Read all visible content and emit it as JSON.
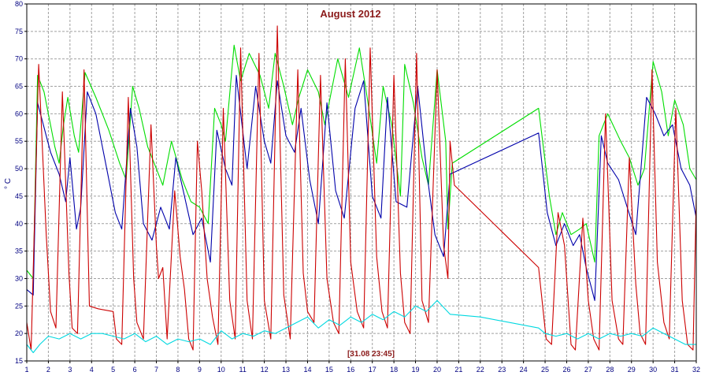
{
  "chart_data": {
    "type": "line",
    "title": "August 2012",
    "ylabel": "° C",
    "xlabel": "",
    "footer_label": "[31.08 23:45]",
    "xlim": [
      1,
      32
    ],
    "ylim": [
      15,
      80
    ],
    "x_ticks": [
      1,
      2,
      3,
      4,
      5,
      6,
      7,
      8,
      9,
      10,
      11,
      12,
      13,
      14,
      15,
      16,
      17,
      18,
      19,
      20,
      21,
      22,
      23,
      24,
      25,
      26,
      27,
      28,
      29,
      30,
      31,
      32
    ],
    "y_ticks": [
      15,
      20,
      25,
      30,
      35,
      40,
      45,
      50,
      55,
      60,
      65,
      70,
      75,
      80
    ],
    "grid": true,
    "legend": "none",
    "colors": {
      "title": "#8b1a1a",
      "axis_text": "#000080",
      "grid": "#a0a0a0",
      "frame": "#000000"
    },
    "series": [
      {
        "color": "#00dd00",
        "points": [
          [
            1.0,
            31.5
          ],
          [
            1.3,
            30
          ],
          [
            1.5,
            67
          ],
          [
            1.8,
            64
          ],
          [
            2.3,
            54
          ],
          [
            2.5,
            51
          ],
          [
            2.7,
            58
          ],
          [
            2.9,
            63
          ],
          [
            3.2,
            56
          ],
          [
            3.4,
            53
          ],
          [
            3.7,
            67.5
          ],
          [
            4.2,
            63
          ],
          [
            4.8,
            57
          ],
          [
            5.3,
            51
          ],
          [
            5.6,
            48
          ],
          [
            5.9,
            65
          ],
          [
            6.2,
            61
          ],
          [
            6.6,
            54
          ],
          [
            7.0,
            50
          ],
          [
            7.3,
            47
          ],
          [
            7.7,
            55
          ],
          [
            8.2,
            48
          ],
          [
            8.6,
            44
          ],
          [
            9.0,
            43
          ],
          [
            9.4,
            40
          ],
          [
            9.7,
            61
          ],
          [
            10.0,
            58
          ],
          [
            10.2,
            55
          ],
          [
            10.6,
            72.5
          ],
          [
            10.9,
            66
          ],
          [
            11.3,
            71
          ],
          [
            11.8,
            67
          ],
          [
            12.2,
            61
          ],
          [
            12.5,
            71
          ],
          [
            12.9,
            65
          ],
          [
            13.3,
            58
          ],
          [
            13.6,
            63
          ],
          [
            14.0,
            68
          ],
          [
            14.5,
            64
          ],
          [
            14.8,
            58
          ],
          [
            15.4,
            70
          ],
          [
            15.9,
            63
          ],
          [
            16.4,
            72
          ],
          [
            16.8,
            62
          ],
          [
            17.2,
            51
          ],
          [
            17.5,
            65
          ],
          [
            17.9,
            58
          ],
          [
            18.3,
            45
          ],
          [
            18.5,
            69
          ],
          [
            18.9,
            62
          ],
          [
            19.3,
            52
          ],
          [
            19.6,
            47
          ],
          [
            20.0,
            68
          ],
          [
            20.4,
            55
          ],
          [
            20.5,
            39
          ],
          [
            20.7,
            51
          ],
          [
            24.7,
            61
          ],
          [
            25.2,
            45
          ],
          [
            25.5,
            38
          ],
          [
            25.8,
            42
          ],
          [
            26.2,
            38
          ],
          [
            26.6,
            39
          ],
          [
            26.9,
            40
          ],
          [
            27.3,
            33
          ],
          [
            27.5,
            56
          ],
          [
            27.9,
            60
          ],
          [
            28.5,
            55
          ],
          [
            28.9,
            52
          ],
          [
            29.3,
            47
          ],
          [
            29.6,
            50
          ],
          [
            30.0,
            69.5
          ],
          [
            30.4,
            64
          ],
          [
            30.7,
            56
          ],
          [
            31.0,
            62.5
          ],
          [
            31.4,
            58
          ],
          [
            31.7,
            50
          ],
          [
            32.0,
            48
          ]
        ]
      },
      {
        "color": "#0000aa",
        "points": [
          [
            1.0,
            28
          ],
          [
            1.3,
            27
          ],
          [
            1.5,
            62
          ],
          [
            1.9,
            56
          ],
          [
            2.1,
            53
          ],
          [
            2.5,
            49
          ],
          [
            2.8,
            44
          ],
          [
            3.0,
            52
          ],
          [
            3.3,
            39
          ],
          [
            3.5,
            43
          ],
          [
            3.8,
            64
          ],
          [
            4.2,
            60
          ],
          [
            4.7,
            50
          ],
          [
            5.1,
            42
          ],
          [
            5.4,
            39
          ],
          [
            5.8,
            61
          ],
          [
            6.1,
            54
          ],
          [
            6.4,
            40
          ],
          [
            6.8,
            37
          ],
          [
            7.2,
            43
          ],
          [
            7.6,
            39
          ],
          [
            7.9,
            52
          ],
          [
            8.3,
            45
          ],
          [
            8.7,
            38
          ],
          [
            9.1,
            41
          ],
          [
            9.5,
            33
          ],
          [
            9.8,
            57
          ],
          [
            10.2,
            50
          ],
          [
            10.5,
            47
          ],
          [
            10.7,
            67
          ],
          [
            11.2,
            50
          ],
          [
            11.6,
            65
          ],
          [
            12.0,
            55
          ],
          [
            12.3,
            51
          ],
          [
            12.6,
            66
          ],
          [
            13.0,
            56
          ],
          [
            13.4,
            53
          ],
          [
            13.7,
            61
          ],
          [
            14.1,
            48
          ],
          [
            14.5,
            40
          ],
          [
            14.9,
            62
          ],
          [
            15.3,
            46
          ],
          [
            15.7,
            41
          ],
          [
            16.2,
            61
          ],
          [
            16.6,
            66
          ],
          [
            17.0,
            45
          ],
          [
            17.4,
            41
          ],
          [
            17.7,
            63
          ],
          [
            18.1,
            44
          ],
          [
            18.6,
            43
          ],
          [
            19.1,
            65
          ],
          [
            19.5,
            50
          ],
          [
            19.9,
            38
          ],
          [
            20.3,
            34
          ],
          [
            20.6,
            49
          ],
          [
            24.7,
            56.5
          ],
          [
            25.1,
            42
          ],
          [
            25.5,
            36
          ],
          [
            25.9,
            40
          ],
          [
            26.3,
            36
          ],
          [
            26.6,
            38
          ],
          [
            26.9,
            32
          ],
          [
            27.3,
            26
          ],
          [
            27.6,
            56
          ],
          [
            27.9,
            51
          ],
          [
            28.4,
            48
          ],
          [
            28.8,
            43
          ],
          [
            29.2,
            38
          ],
          [
            29.7,
            63
          ],
          [
            30.1,
            60
          ],
          [
            30.5,
            56
          ],
          [
            30.9,
            58
          ],
          [
            31.3,
            50
          ],
          [
            31.7,
            47
          ],
          [
            32.0,
            41
          ]
        ]
      },
      {
        "color": "#cc0000",
        "points": [
          [
            1.0,
            22
          ],
          [
            1.2,
            17
          ],
          [
            1.55,
            69
          ],
          [
            1.9,
            38
          ],
          [
            2.1,
            24
          ],
          [
            2.35,
            21
          ],
          [
            2.65,
            64
          ],
          [
            2.95,
            31
          ],
          [
            3.1,
            21
          ],
          [
            3.35,
            20
          ],
          [
            3.65,
            68
          ],
          [
            3.9,
            25
          ],
          [
            4.3,
            24.5
          ],
          [
            5.0,
            24
          ],
          [
            5.15,
            19
          ],
          [
            5.4,
            18
          ],
          [
            5.7,
            63
          ],
          [
            5.95,
            30
          ],
          [
            6.1,
            22
          ],
          [
            6.4,
            19
          ],
          [
            6.75,
            58
          ],
          [
            7.0,
            36
          ],
          [
            7.1,
            30
          ],
          [
            7.3,
            32
          ],
          [
            7.5,
            19
          ],
          [
            7.85,
            46
          ],
          [
            8.1,
            34
          ],
          [
            8.3,
            28
          ],
          [
            8.5,
            19
          ],
          [
            8.7,
            17
          ],
          [
            8.9,
            55
          ],
          [
            9.1,
            46
          ],
          [
            9.35,
            30
          ],
          [
            9.6,
            23
          ],
          [
            9.85,
            18
          ],
          [
            10.1,
            61
          ],
          [
            10.4,
            26
          ],
          [
            10.65,
            19
          ],
          [
            10.9,
            72
          ],
          [
            11.2,
            26
          ],
          [
            11.45,
            19
          ],
          [
            11.75,
            71
          ],
          [
            12.0,
            26
          ],
          [
            12.3,
            19
          ],
          [
            12.6,
            76
          ],
          [
            12.9,
            27
          ],
          [
            13.2,
            19
          ],
          [
            13.55,
            68
          ],
          [
            13.8,
            31
          ],
          [
            14.0,
            24
          ],
          [
            14.3,
            22
          ],
          [
            14.6,
            67
          ],
          [
            14.9,
            30
          ],
          [
            15.2,
            22
          ],
          [
            15.45,
            20
          ],
          [
            15.75,
            70
          ],
          [
            16.0,
            33
          ],
          [
            16.3,
            24
          ],
          [
            16.6,
            21
          ],
          [
            16.9,
            72
          ],
          [
            17.2,
            34
          ],
          [
            17.45,
            24
          ],
          [
            17.7,
            21
          ],
          [
            18.0,
            67
          ],
          [
            18.3,
            31
          ],
          [
            18.5,
            22
          ],
          [
            18.75,
            20
          ],
          [
            19.05,
            71
          ],
          [
            19.3,
            26
          ],
          [
            19.6,
            22
          ],
          [
            20.0,
            68
          ],
          [
            20.3,
            36
          ],
          [
            20.5,
            30
          ],
          [
            20.6,
            55
          ],
          [
            20.8,
            47
          ],
          [
            24.7,
            32
          ],
          [
            25.05,
            19
          ],
          [
            25.3,
            18
          ],
          [
            25.6,
            42
          ],
          [
            25.9,
            36
          ],
          [
            26.2,
            18
          ],
          [
            26.4,
            17
          ],
          [
            26.75,
            41
          ],
          [
            27.0,
            26
          ],
          [
            27.25,
            19
          ],
          [
            27.5,
            17
          ],
          [
            27.8,
            60
          ],
          [
            28.1,
            26
          ],
          [
            28.4,
            19
          ],
          [
            28.6,
            18
          ],
          [
            28.9,
            52
          ],
          [
            29.2,
            29
          ],
          [
            29.4,
            20
          ],
          [
            29.65,
            18
          ],
          [
            29.95,
            68
          ],
          [
            30.2,
            33
          ],
          [
            30.5,
            22
          ],
          [
            30.75,
            19
          ],
          [
            31.05,
            61
          ],
          [
            31.35,
            26
          ],
          [
            31.6,
            18
          ],
          [
            31.85,
            17
          ],
          [
            32.0,
            45
          ]
        ]
      },
      {
        "color": "#00d8e0",
        "points": [
          [
            1.0,
            18
          ],
          [
            1.3,
            16.5
          ],
          [
            1.6,
            18
          ],
          [
            2.0,
            19.5
          ],
          [
            2.5,
            19
          ],
          [
            3.0,
            20
          ],
          [
            3.5,
            19
          ],
          [
            4.0,
            20
          ],
          [
            4.5,
            20
          ],
          [
            5.0,
            19.5
          ],
          [
            5.5,
            19
          ],
          [
            6.0,
            20
          ],
          [
            6.5,
            18.5
          ],
          [
            7.0,
            19.5
          ],
          [
            7.5,
            18
          ],
          [
            8.0,
            19
          ],
          [
            8.5,
            18.5
          ],
          [
            9.0,
            19
          ],
          [
            9.5,
            18
          ],
          [
            10.0,
            20.5
          ],
          [
            10.5,
            19
          ],
          [
            11.0,
            20
          ],
          [
            11.5,
            19.5
          ],
          [
            12.0,
            20.5
          ],
          [
            12.5,
            20
          ],
          [
            13.0,
            21
          ],
          [
            13.5,
            22
          ],
          [
            14.0,
            23
          ],
          [
            14.5,
            21
          ],
          [
            15.0,
            22.5
          ],
          [
            15.5,
            21.5
          ],
          [
            16.0,
            23
          ],
          [
            16.5,
            22
          ],
          [
            17.0,
            23.5
          ],
          [
            17.5,
            22.5
          ],
          [
            18.0,
            24
          ],
          [
            18.5,
            23
          ],
          [
            19.0,
            25
          ],
          [
            19.5,
            24
          ],
          [
            20.0,
            26
          ],
          [
            20.6,
            23.5
          ],
          [
            22.0,
            23
          ],
          [
            24.7,
            21
          ],
          [
            25.0,
            20
          ],
          [
            25.5,
            19.5
          ],
          [
            26.0,
            20
          ],
          [
            26.5,
            19
          ],
          [
            27.0,
            20
          ],
          [
            27.5,
            19
          ],
          [
            28.0,
            20
          ],
          [
            28.5,
            19.5
          ],
          [
            29.0,
            20
          ],
          [
            29.5,
            19.5
          ],
          [
            30.0,
            21
          ],
          [
            30.5,
            20
          ],
          [
            31.0,
            19
          ],
          [
            31.5,
            18
          ],
          [
            32.0,
            18
          ]
        ]
      }
    ]
  }
}
